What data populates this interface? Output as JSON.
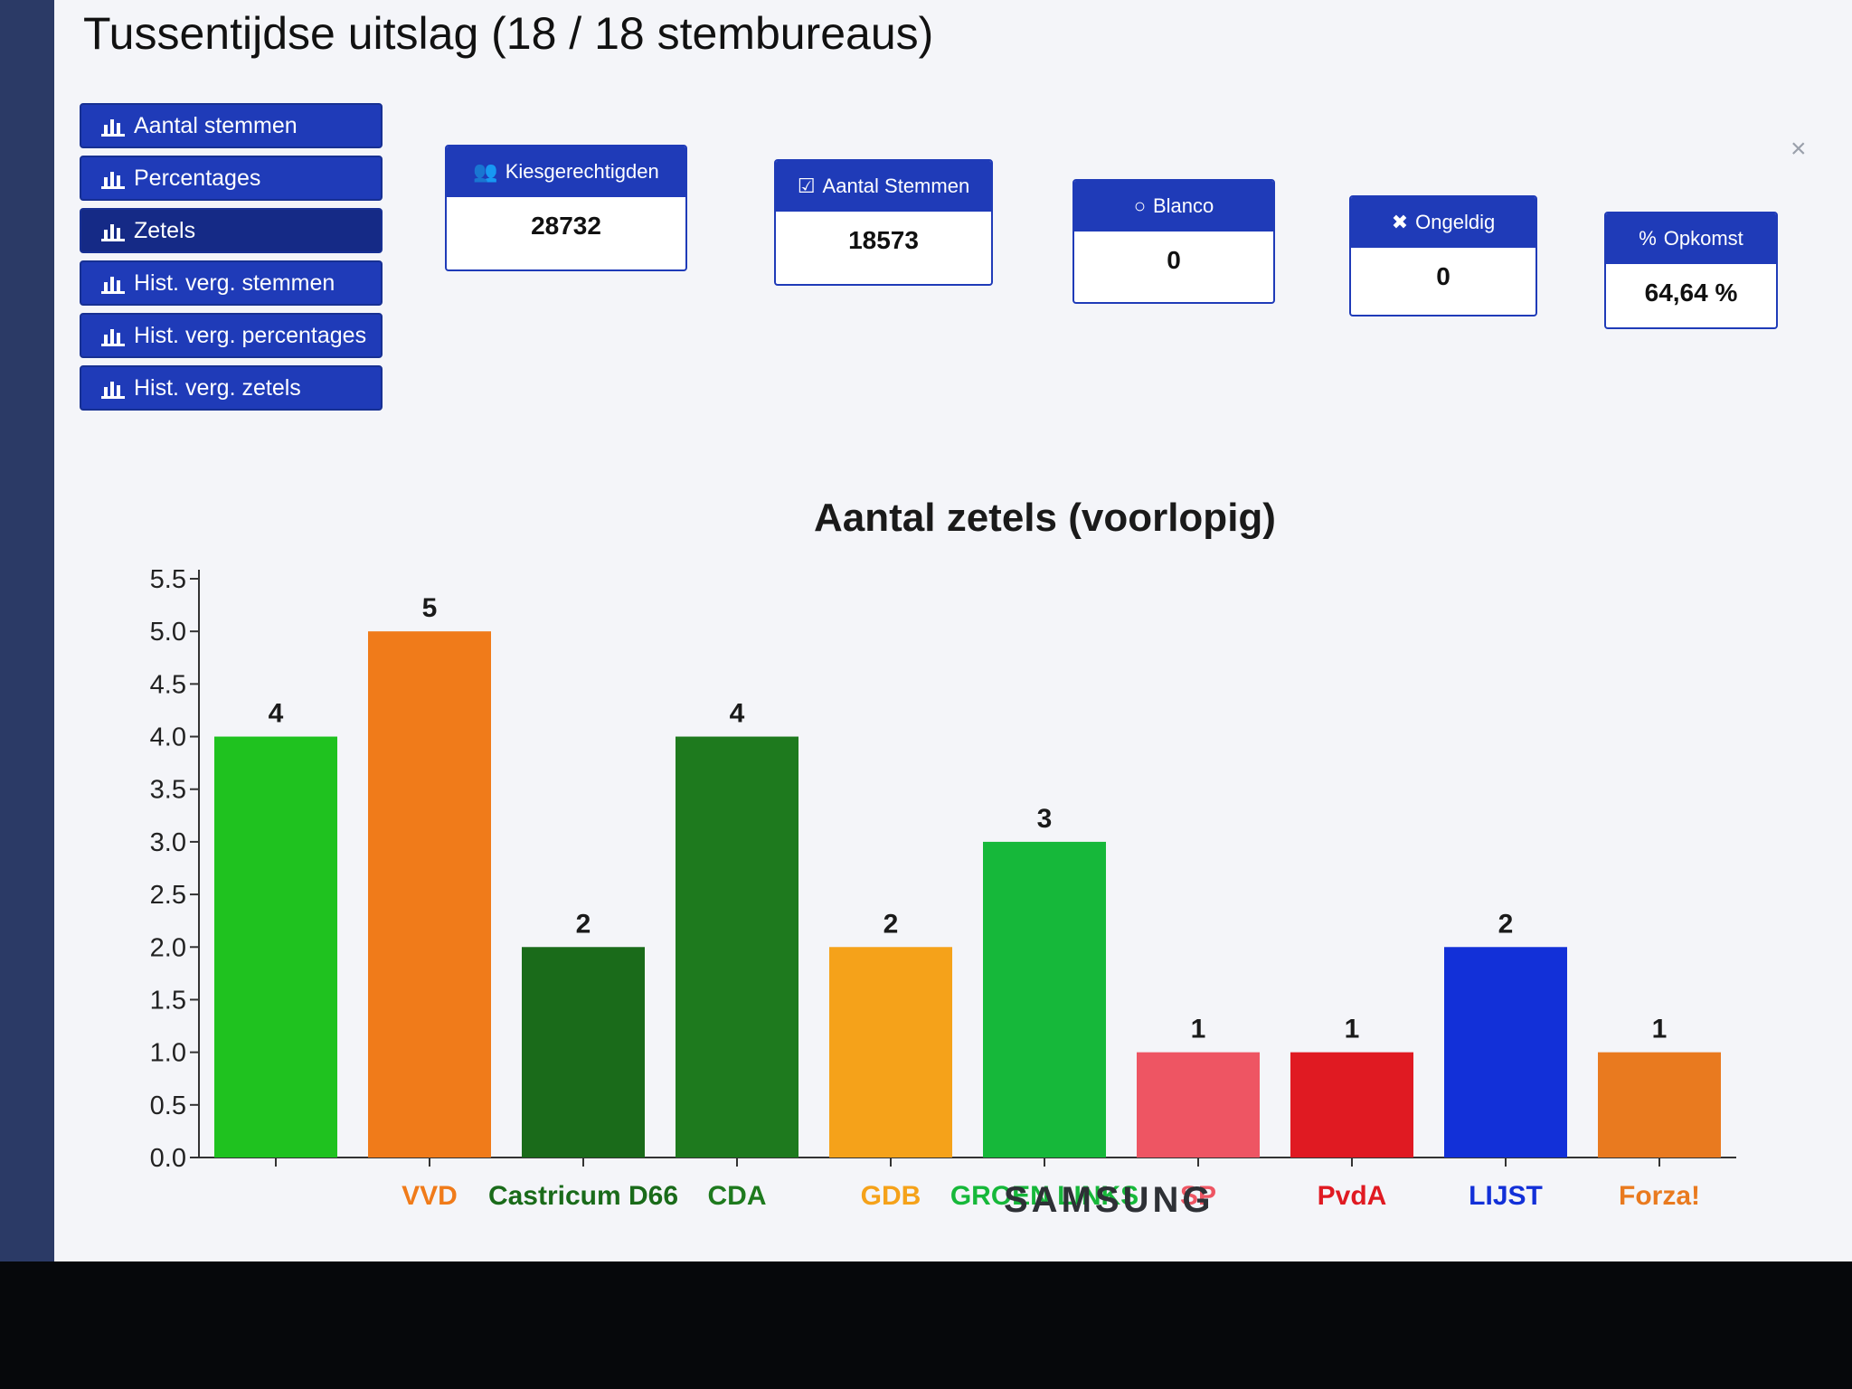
{
  "page": {
    "title": "Tussentijdse uitslag (18 / 18 stembureaus)",
    "close": "×"
  },
  "nav": {
    "items": [
      {
        "label": "Aantal stemmen",
        "active": false
      },
      {
        "label": "Percentages",
        "active": false
      },
      {
        "label": "Zetels",
        "active": true
      },
      {
        "label": "Hist. verg. stemmen",
        "active": false
      },
      {
        "label": "Hist. verg. percentages",
        "active": false
      },
      {
        "label": "Hist. verg. zetels",
        "active": false
      }
    ]
  },
  "stats": [
    {
      "icon": "users-icon",
      "label": "Kiesgerechtigden",
      "value": "28732"
    },
    {
      "icon": "check-square-icon",
      "label": "Aantal Stemmen",
      "value": "18573"
    },
    {
      "icon": "circle-icon",
      "label": "Blanco",
      "value": "0"
    },
    {
      "icon": "x-icon",
      "label": "Ongeldig",
      "value": "0"
    },
    {
      "icon": "percent-icon",
      "label": "Opkomst",
      "value": "64,64 %"
    }
  ],
  "brand": "SAMSUNG",
  "chart_data": {
    "type": "bar",
    "title": "Aantal zetels (voorlopig)",
    "xlabel": "",
    "ylabel": "",
    "ylim": [
      0,
      5.5
    ],
    "yticks": [
      "0.0",
      "0.5",
      "1.0",
      "1.5",
      "2.0",
      "2.5",
      "3.0",
      "3.5",
      "4.0",
      "4.5",
      "5.0",
      "5.5"
    ],
    "categories": [
      "",
      "VVD",
      "Castricum D66",
      "CDA",
      "GDB",
      "GROEN LINKS",
      "SP",
      "PvdA",
      "LIJST",
      "Forza!"
    ],
    "values": [
      4,
      5,
      2,
      4,
      2,
      3,
      1,
      1,
      2,
      1
    ],
    "colors": [
      "#1fc21f",
      "#f07b1a",
      "#1a6b1a",
      "#1e7a1e",
      "#f5a21a",
      "#16b83a",
      "#ee5563",
      "#e01a22",
      "#1230d8",
      "#e97a1f"
    ],
    "grid": false,
    "legend": "none"
  }
}
